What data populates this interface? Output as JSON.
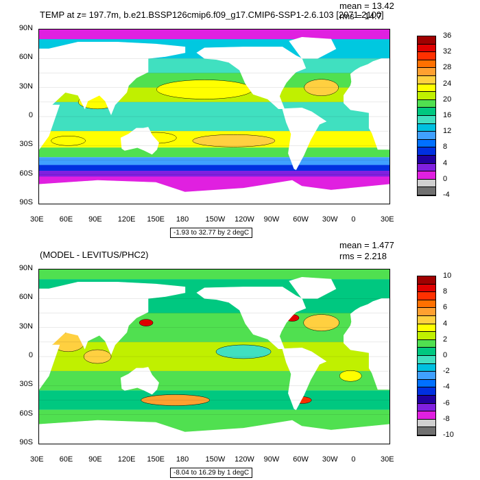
{
  "panels": [
    {
      "title": "TEMP at z= 197.7m, b.e21.BSSP126cmip6.f09_g17.CMIP6-SSP1-2.6.103 [2071-2100]",
      "mean": "mean = 13.42",
      "rms": "rms = 14.7",
      "range": "-1.93 to 32.77 by 2 degC",
      "colorbar": {
        "labels": [
          "36",
          "32",
          "28",
          "24",
          "20",
          "16",
          "12",
          "8",
          "4",
          "0",
          "-4"
        ],
        "colors": [
          "#a00000",
          "#e00000",
          "#ff3000",
          "#ff7000",
          "#ffa030",
          "#ffd040",
          "#ffff00",
          "#c0f000",
          "#50e050",
          "#00c880",
          "#40e0c0",
          "#00c0e0",
          "#40a0ff",
          "#0070ff",
          "#0030e0",
          "#2000a0",
          "#8020e0",
          "#e020e0",
          "#d0d0d0",
          "#707070"
        ]
      }
    },
    {
      "title": "(MODEL - LEVITUS/PHC2)",
      "mean": "mean = 1.477",
      "rms": "rms = 2.218",
      "range": "-8.04 to 16.29 by 1 degC",
      "colorbar": {
        "labels": [
          "10",
          "8",
          "6",
          "4",
          "2",
          "0",
          "-2",
          "-4",
          "-6",
          "-8",
          "-10"
        ],
        "colors": [
          "#a00000",
          "#e00000",
          "#ff3000",
          "#ff7000",
          "#ffa030",
          "#ffd040",
          "#ffff00",
          "#c0f000",
          "#50e050",
          "#00c880",
          "#40e0c0",
          "#00c0e0",
          "#40a0ff",
          "#0070ff",
          "#0030e0",
          "#2000a0",
          "#8020e0",
          "#e020e0",
          "#d0d0d0",
          "#707070"
        ]
      }
    }
  ],
  "lat_labels": [
    "90N",
    "60N",
    "30N",
    "0",
    "30S",
    "60S",
    "90S"
  ],
  "lon_labels": [
    "30E",
    "60E",
    "90E",
    "120E",
    "150E",
    "180",
    "150W",
    "120W",
    "90W",
    "60W",
    "30W",
    "0",
    "30E"
  ],
  "map": {
    "projection": "cylindrical-equidistant",
    "central_longitude": 180,
    "land_color": "#ffffff",
    "background_color": "#ffffff"
  }
}
